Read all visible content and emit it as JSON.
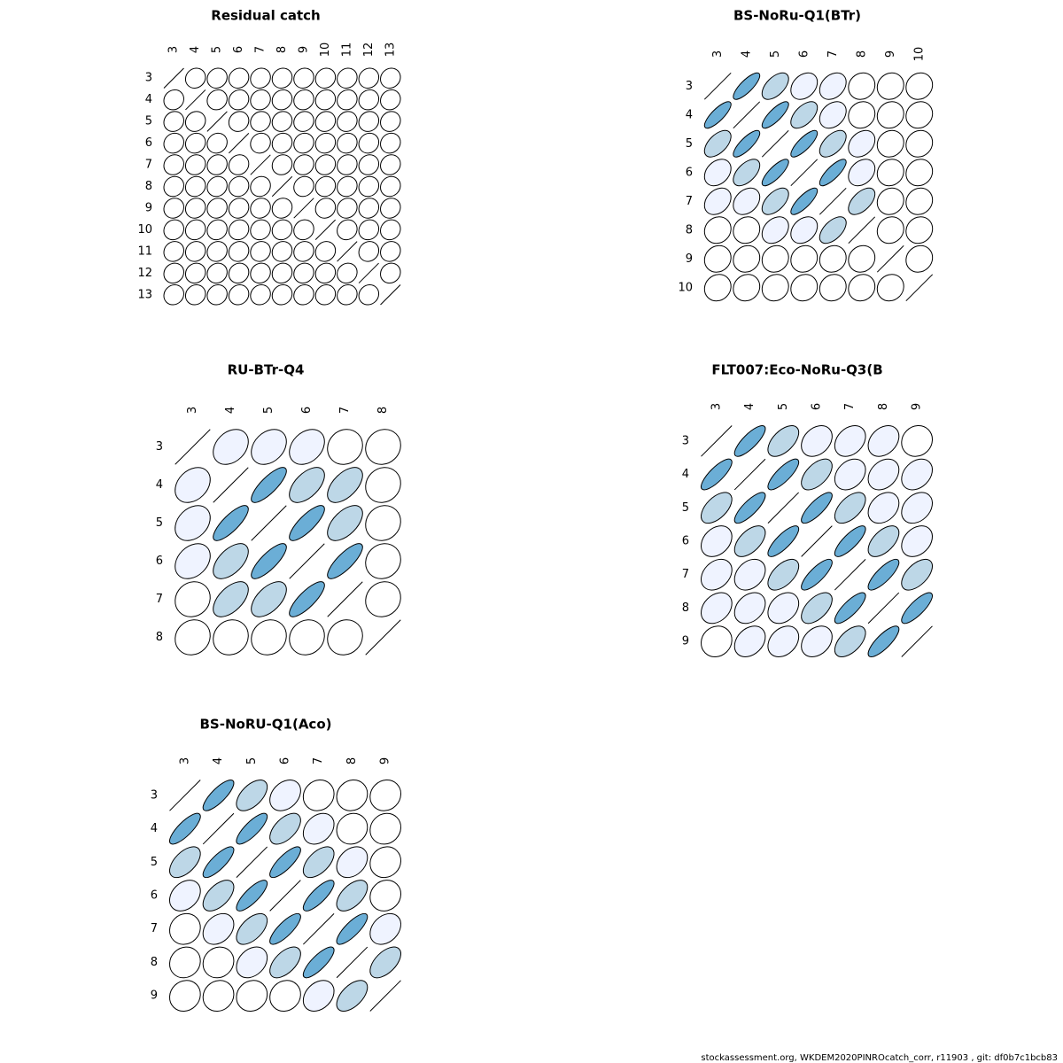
{
  "chart_data": [
    {
      "type": "corr",
      "title": "Residual catch",
      "categories": [
        "3",
        "4",
        "5",
        "6",
        "7",
        "8",
        "9",
        "10",
        "11",
        "12",
        "13"
      ],
      "colors": [
        "#ffffff",
        "#eff3ff",
        "#bdd7e7",
        "#6baed6"
      ],
      "values": [
        [
          1,
          0.1,
          0.1,
          0.1,
          0.1,
          0.1,
          0.1,
          0.1,
          0.1,
          0.1,
          0.1
        ],
        [
          0.1,
          1,
          0.1,
          0.1,
          0.1,
          0.1,
          0.1,
          0.1,
          0.1,
          0.1,
          0.1
        ],
        [
          0.1,
          0.1,
          1,
          0.1,
          0.1,
          0.1,
          0.1,
          0.1,
          0.1,
          0.1,
          0.1
        ],
        [
          0.1,
          0.1,
          0.1,
          1,
          0.1,
          0.1,
          0.1,
          0.1,
          0.1,
          0.1,
          0.1
        ],
        [
          0.1,
          0.1,
          0.1,
          0.1,
          1,
          0.1,
          0.1,
          0.1,
          0.1,
          0.1,
          0.1
        ],
        [
          0.1,
          0.1,
          0.1,
          0.1,
          0.1,
          1,
          0.1,
          0.1,
          0.1,
          0.1,
          0.1
        ],
        [
          0.1,
          0.1,
          0.1,
          0.1,
          0.1,
          0.1,
          1,
          0.1,
          0.1,
          0.1,
          0.1
        ],
        [
          0.1,
          0.1,
          0.1,
          0.1,
          0.1,
          0.1,
          0.1,
          1,
          0.1,
          0.1,
          0.1
        ],
        [
          0.1,
          0.1,
          0.1,
          0.1,
          0.1,
          0.1,
          0.1,
          0.1,
          1,
          0.1,
          0.1
        ],
        [
          0.1,
          0.1,
          0.1,
          0.1,
          0.1,
          0.1,
          0.1,
          0.1,
          0.1,
          1,
          0.1
        ],
        [
          0.1,
          0.1,
          0.1,
          0.1,
          0.1,
          0.1,
          0.1,
          0.1,
          0.1,
          0.1,
          1
        ]
      ]
    },
    {
      "type": "corr",
      "title": "BS-NoRu-Q1(BTr)",
      "categories": [
        "3",
        "4",
        "5",
        "6",
        "7",
        "8",
        "9",
        "10"
      ],
      "colors": [
        "#ffffff",
        "#eff3ff",
        "#bdd7e7",
        "#6baed6"
      ],
      "values": [
        [
          1,
          0.8,
          0.55,
          0.3,
          0.3,
          0.1,
          0.1,
          0.1
        ],
        [
          0.8,
          1,
          0.8,
          0.55,
          0.3,
          0.1,
          0.1,
          0.1
        ],
        [
          0.55,
          0.8,
          1,
          0.8,
          0.55,
          0.3,
          0.1,
          0.1
        ],
        [
          0.3,
          0.55,
          0.8,
          1,
          0.8,
          0.3,
          0.1,
          0.1
        ],
        [
          0.3,
          0.3,
          0.55,
          0.8,
          1,
          0.55,
          0.1,
          0.1
        ],
        [
          0.1,
          0.1,
          0.3,
          0.3,
          0.55,
          1,
          0.1,
          0.1
        ],
        [
          0.1,
          0.1,
          0.1,
          0.1,
          0.1,
          0.1,
          1,
          0.1
        ],
        [
          0.1,
          0.1,
          0.1,
          0.1,
          0.1,
          0.1,
          0.1,
          1
        ]
      ]
    },
    {
      "type": "corr",
      "title": "RU-BTr-Q4",
      "categories": [
        "3",
        "4",
        "5",
        "6",
        "7",
        "8"
      ],
      "colors": [
        "#ffffff",
        "#eff3ff",
        "#bdd7e7",
        "#6baed6"
      ],
      "values": [
        [
          1,
          0.3,
          0.3,
          0.3,
          0.1,
          0.1
        ],
        [
          0.3,
          1,
          0.8,
          0.55,
          0.55,
          0.1
        ],
        [
          0.3,
          0.8,
          1,
          0.8,
          0.55,
          0.1
        ],
        [
          0.3,
          0.55,
          0.8,
          1,
          0.8,
          0.1
        ],
        [
          0.1,
          0.55,
          0.55,
          0.8,
          1,
          0.1
        ],
        [
          0.1,
          0.1,
          0.1,
          0.1,
          0.1,
          1
        ]
      ]
    },
    {
      "type": "corr",
      "title": "FLT007:Eco-NoRu-Q3(B",
      "categories": [
        "3",
        "4",
        "5",
        "6",
        "7",
        "8",
        "9"
      ],
      "colors": [
        "#ffffff",
        "#eff3ff",
        "#bdd7e7",
        "#6baed6"
      ],
      "values": [
        [
          1,
          0.8,
          0.55,
          0.3,
          0.3,
          0.3,
          0.1
        ],
        [
          0.8,
          1,
          0.8,
          0.55,
          0.3,
          0.3,
          0.3
        ],
        [
          0.55,
          0.8,
          1,
          0.8,
          0.55,
          0.3,
          0.3
        ],
        [
          0.3,
          0.55,
          0.8,
          1,
          0.8,
          0.55,
          0.3
        ],
        [
          0.3,
          0.3,
          0.55,
          0.8,
          1,
          0.8,
          0.55
        ],
        [
          0.3,
          0.3,
          0.3,
          0.55,
          0.8,
          1,
          0.8
        ],
        [
          0.1,
          0.3,
          0.3,
          0.3,
          0.55,
          0.8,
          1
        ]
      ]
    },
    {
      "type": "corr",
      "title": "BS-NoRU-Q1(Aco)",
      "categories": [
        "3",
        "4",
        "5",
        "6",
        "7",
        "8",
        "9"
      ],
      "colors": [
        "#ffffff",
        "#eff3ff",
        "#bdd7e7",
        "#6baed6"
      ],
      "values": [
        [
          1,
          0.8,
          0.55,
          0.3,
          0.1,
          0.1,
          0.1
        ],
        [
          0.8,
          1,
          0.8,
          0.55,
          0.3,
          0.1,
          0.1
        ],
        [
          0.55,
          0.8,
          1,
          0.8,
          0.55,
          0.3,
          0.1
        ],
        [
          0.3,
          0.55,
          0.8,
          1,
          0.8,
          0.55,
          0.1
        ],
        [
          0.1,
          0.3,
          0.55,
          0.8,
          1,
          0.8,
          0.3
        ],
        [
          0.1,
          0.1,
          0.3,
          0.55,
          0.8,
          1,
          0.55
        ],
        [
          0.1,
          0.1,
          0.1,
          0.1,
          0.3,
          0.55,
          1
        ]
      ]
    }
  ],
  "footer": "stockassessment.org, WKDEM2020PINROcatch_corr, r11903 , git: df0b7c1bcb83"
}
